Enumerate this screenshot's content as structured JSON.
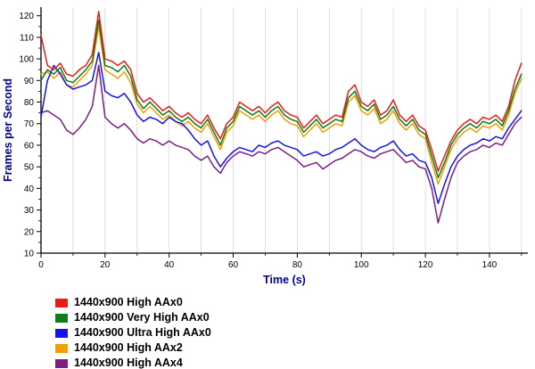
{
  "chart_data": {
    "type": "line",
    "title": "",
    "xlabel": "Time (s)",
    "ylabel": "Frames per Second",
    "xlim": [
      0,
      152
    ],
    "ylim": [
      10,
      124
    ],
    "x_ticks": [
      0,
      20,
      40,
      60,
      80,
      100,
      120,
      140
    ],
    "x_minor_step": 10,
    "y_ticks": [
      10,
      20,
      30,
      40,
      50,
      60,
      70,
      80,
      90,
      100,
      110,
      120
    ],
    "grid": "vertical",
    "grid_color": "#d4d4d4",
    "axis_color": "#000000",
    "axis_title_color": "#00008B",
    "legend_position": "bottom-left",
    "x": [
      0,
      2,
      4,
      6,
      8,
      10,
      12,
      14,
      16,
      18,
      20,
      22,
      24,
      26,
      28,
      30,
      32,
      34,
      36,
      38,
      40,
      42,
      44,
      46,
      48,
      50,
      52,
      54,
      56,
      58,
      60,
      62,
      64,
      66,
      68,
      70,
      72,
      74,
      76,
      78,
      80,
      82,
      84,
      86,
      88,
      90,
      92,
      94,
      96,
      98,
      100,
      102,
      104,
      106,
      108,
      110,
      112,
      114,
      116,
      118,
      120,
      122,
      124,
      126,
      128,
      130,
      132,
      134,
      136,
      138,
      140,
      142,
      144,
      146,
      148,
      150
    ],
    "series": [
      {
        "name": "1440x900 High AAx0",
        "color": "#e81e14",
        "values": [
          111,
          97,
          95,
          98,
          93,
          92,
          95,
          97,
          102,
          122,
          100,
          99,
          97,
          99,
          95,
          84,
          80,
          82,
          79,
          76,
          78,
          75,
          73,
          75,
          72,
          70,
          74,
          68,
          63,
          70,
          73,
          80,
          78,
          76,
          78,
          75,
          78,
          80,
          76,
          74,
          73,
          68,
          71,
          74,
          70,
          72,
          74,
          73,
          85,
          88,
          80,
          78,
          81,
          74,
          76,
          81,
          74,
          71,
          74,
          69,
          67,
          58,
          48,
          55,
          62,
          67,
          70,
          72,
          70,
          73,
          72,
          74,
          71,
          78,
          90,
          98
        ]
      },
      {
        "name": "1440x900 Very High AAx0",
        "color": "#0f7a1e",
        "values": [
          90,
          95,
          93,
          96,
          90,
          89,
          92,
          95,
          99,
          118,
          97,
          96,
          94,
          97,
          92,
          81,
          77,
          80,
          77,
          74,
          76,
          73,
          71,
          73,
          70,
          68,
          72,
          66,
          60,
          68,
          71,
          78,
          76,
          74,
          76,
          73,
          76,
          78,
          74,
          72,
          71,
          66,
          69,
          72,
          68,
          70,
          72,
          71,
          82,
          85,
          78,
          76,
          79,
          72,
          74,
          78,
          72,
          69,
          72,
          67,
          65,
          55,
          45,
          52,
          60,
          65,
          68,
          70,
          68,
          71,
          70,
          72,
          69,
          76,
          86,
          93
        ]
      },
      {
        "name": "1440x900 Ultra High AAx0",
        "color": "#1414e6",
        "values": [
          73,
          90,
          97,
          93,
          88,
          86,
          87,
          88,
          90,
          103,
          85,
          83,
          82,
          84,
          80,
          74,
          71,
          73,
          72,
          70,
          73,
          71,
          70,
          67,
          63,
          60,
          62,
          55,
          50,
          54,
          57,
          59,
          58,
          57,
          60,
          59,
          61,
          62,
          60,
          59,
          58,
          55,
          56,
          57,
          55,
          56,
          58,
          59,
          61,
          63,
          60,
          58,
          57,
          59,
          60,
          62,
          58,
          55,
          56,
          53,
          52,
          45,
          33,
          42,
          50,
          55,
          58,
          60,
          61,
          63,
          62,
          64,
          63,
          68,
          72,
          76
        ]
      },
      {
        "name": "1440x900 High AAx2",
        "color": "#f0a000",
        "values": [
          93,
          94,
          91,
          94,
          88,
          87,
          90,
          93,
          97,
          115,
          95,
          93,
          91,
          94,
          89,
          79,
          75,
          78,
          75,
          72,
          74,
          71,
          69,
          71,
          68,
          66,
          70,
          64,
          58,
          66,
          69,
          76,
          74,
          72,
          74,
          71,
          74,
          76,
          72,
          70,
          69,
          64,
          67,
          70,
          66,
          68,
          70,
          69,
          80,
          83,
          76,
          74,
          77,
          70,
          72,
          76,
          70,
          67,
          70,
          65,
          63,
          52,
          42,
          50,
          58,
          63,
          66,
          68,
          66,
          69,
          68,
          70,
          67,
          74,
          84,
          91
        ]
      },
      {
        "name": "1440x900 High AAx4",
        "color": "#7a1e82",
        "values": [
          75,
          76,
          74,
          72,
          67,
          65,
          68,
          72,
          78,
          97,
          73,
          70,
          68,
          70,
          67,
          63,
          61,
          63,
          62,
          60,
          62,
          60,
          59,
          58,
          55,
          53,
          55,
          50,
          47,
          52,
          55,
          57,
          56,
          55,
          57,
          56,
          58,
          59,
          57,
          55,
          53,
          50,
          51,
          52,
          49,
          51,
          53,
          54,
          56,
          58,
          57,
          55,
          54,
          56,
          57,
          58,
          55,
          52,
          53,
          50,
          49,
          40,
          24,
          35,
          45,
          52,
          55,
          57,
          58,
          60,
          59,
          61,
          60,
          65,
          70,
          73
        ]
      }
    ]
  }
}
